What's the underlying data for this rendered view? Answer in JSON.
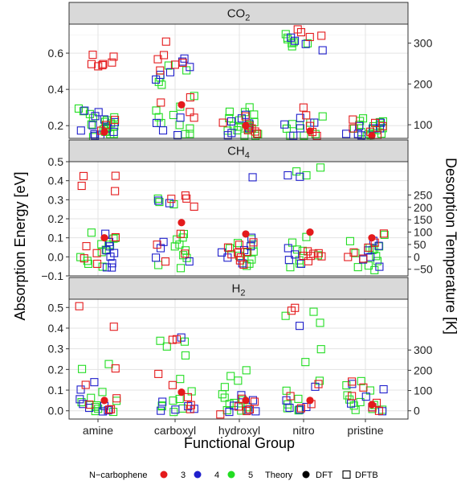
{
  "chart_data": {
    "type": "scatter",
    "xlabel": "Functional Group",
    "ylabel_left": "Absorption Energy [eV]",
    "ylabel_right": "Desorption Temperature [K]",
    "categories": [
      "amine",
      "carboxyl",
      "hydroxyl",
      "nitro",
      "pristine"
    ],
    "legend": {
      "n_title": "N−carbophene",
      "n_items": [
        {
          "label": "3",
          "color": "#e41a1c"
        },
        {
          "label": "4",
          "color": "#1f1fcc"
        },
        {
          "label": "5",
          "color": "#22dd22"
        }
      ],
      "theory_title": "Theory",
      "theory_items": [
        {
          "label": "DFT",
          "shape": "filled-circle"
        },
        {
          "label": "DFTB",
          "shape": "open-square"
        }
      ]
    },
    "panels": [
      {
        "strip": "CO",
        "strip_sub": "2",
        "ylim": [
          0.13,
          0.76
        ],
        "yticks": [
          0.2,
          0.4,
          0.6
        ],
        "yticklabels": [
          "0.2",
          "0.4",
          "0.6"
        ],
        "right_ticks": [
          {
            "y": 0.205,
            "label": "100"
          },
          {
            "y": 0.43,
            "label": "200"
          },
          {
            "y": 0.655,
            "label": "300"
          }
        ],
        "dft": [
          {
            "cat": "amine",
            "n": 3,
            "y": 0.165
          },
          {
            "cat": "carboxyl",
            "n": 3,
            "y": 0.315
          },
          {
            "cat": "hydroxyl",
            "n": 3,
            "y": 0.2
          },
          {
            "cat": "nitro",
            "n": 3,
            "y": 0.17
          },
          {
            "cat": "pristine",
            "n": 3,
            "y": 0.145
          }
        ],
        "dftb": {
          "amine": {
            "3": [
              0.59,
              0.54,
              0.53,
              0.58,
              0.55,
              0.54,
              0.53,
              0.23,
              0.2,
              0.17
            ],
            "4": [
              0.28,
              0.25,
              0.22,
              0.19,
              0.17,
              0.15,
              0.14,
              0.16,
              0.2,
              0.24,
              0.27,
              0.15
            ],
            "5": [
              0.3,
              0.26,
              0.23,
              0.21,
              0.19,
              0.17,
              0.15,
              0.14,
              0.16,
              0.22,
              0.25,
              0.28,
              0.2,
              0.18,
              0.16,
              0.24,
              0.21
            ]
          },
          "carboxyl": {
            "3": [
              0.66,
              0.59,
              0.57,
              0.55,
              0.53,
              0.51,
              0.33,
              0.35,
              0.28,
              0.25
            ],
            "4": [
              0.57,
              0.55,
              0.52,
              0.5,
              0.48,
              0.46,
              0.25,
              0.22,
              0.18,
              0.15
            ],
            "5": [
              0.53,
              0.51,
              0.47,
              0.44,
              0.42,
              0.36,
              0.3,
              0.26,
              0.22,
              0.19,
              0.16,
              0.15,
              0.28,
              0.24,
              0.2
            ]
          },
          "hydroxyl": {
            "3": [
              0.25,
              0.22,
              0.19,
              0.17,
              0.15,
              0.2,
              0.18
            ],
            "4": [
              0.26,
              0.24,
              0.21,
              0.18,
              0.16,
              0.15,
              0.22
            ],
            "5": [
              0.3,
              0.28,
              0.26,
              0.24,
              0.22,
              0.2,
              0.19,
              0.18,
              0.17,
              0.16,
              0.15,
              0.14,
              0.27,
              0.23,
              0.21,
              0.19,
              0.17
            ]
          },
          "nitro": {
            "3": [
              0.72,
              0.7,
              0.69,
              0.73,
              0.3,
              0.26,
              0.2,
              0.17,
              0.15
            ],
            "4": [
              0.68,
              0.67,
              0.65,
              0.61,
              0.24,
              0.2,
              0.18,
              0.15,
              0.22
            ],
            "5": [
              0.7,
              0.68,
              0.67,
              0.66,
              0.65,
              0.64,
              0.66,
              0.25,
              0.22,
              0.2,
              0.18,
              0.16,
              0.15,
              0.14,
              0.21
            ]
          },
          "pristine": {
            "3": [
              0.23,
              0.2,
              0.18,
              0.16,
              0.15,
              0.21
            ],
            "4": [
              0.22,
              0.2,
              0.18,
              0.16,
              0.15,
              0.14,
              0.19
            ],
            "5": [
              0.24,
              0.23,
              0.22,
              0.21,
              0.2,
              0.19,
              0.18,
              0.17,
              0.16,
              0.15,
              0.14,
              0.22,
              0.2,
              0.18,
              0.16,
              0.15
            ]
          }
        }
      },
      {
        "strip": "CH",
        "strip_sub": "4",
        "ylim": [
          -0.1,
          0.5
        ],
        "yticks": [
          -0.1,
          0.0,
          0.1,
          0.2,
          0.3,
          0.4,
          0.5
        ],
        "yticklabels": [
          "−0.1",
          "0.0",
          "0.1",
          "0.2",
          "0.3",
          "0.4",
          "0.5"
        ],
        "right_ticks": [
          {
            "y": -0.065,
            "label": "−50"
          },
          {
            "y": 0.0,
            "label": "0"
          },
          {
            "y": 0.065,
            "label": "50"
          },
          {
            "y": 0.13,
            "label": "100"
          },
          {
            "y": 0.195,
            "label": "150"
          },
          {
            "y": 0.26,
            "label": "200"
          },
          {
            "y": 0.325,
            "label": "250"
          }
        ],
        "dft": [
          {
            "cat": "amine",
            "n": 3,
            "y": 0.1
          },
          {
            "cat": "carboxyl",
            "n": 3,
            "y": 0.18
          },
          {
            "cat": "hydroxyl",
            "n": 3,
            "y": 0.12
          },
          {
            "cat": "nitro",
            "n": 3,
            "y": 0.13
          },
          {
            "cat": "pristine",
            "n": 3,
            "y": 0.1
          }
        ],
        "dftb": {
          "amine": {
            "3": [
              0.43,
              0.42,
              0.37,
              0.35,
              0.1,
              0.05,
              0.02,
              -0.01,
              -0.04
            ],
            "4": [
              0.12,
              0.08,
              0.05,
              0.02,
              0.0,
              -0.03,
              -0.05,
              -0.06,
              0.03
            ],
            "5": [
              0.13,
              0.1,
              0.07,
              0.04,
              0.02,
              0.0,
              -0.02,
              -0.04,
              -0.05,
              0.06,
              0.09
            ]
          },
          "carboxyl": {
            "3": [
              0.32,
              0.31,
              0.3,
              0.26,
              0.12,
              0.06,
              0.02,
              -0.02
            ],
            "4": [
              0.29,
              0.28,
              0.08,
              0.04,
              0.0,
              -0.03
            ],
            "5": [
              0.3,
              0.29,
              0.28,
              0.12,
              0.1,
              0.07,
              0.04,
              0.01,
              -0.01,
              -0.04,
              -0.06,
              0.09,
              0.05
            ]
          },
          "hydroxyl": {
            "3": [
              0.08,
              0.05,
              0.02,
              0.0,
              -0.02,
              0.06,
              0.03,
              0.01,
              -0.04
            ],
            "4": [
              0.42,
              0.1,
              0.06,
              0.02,
              -0.01,
              -0.03,
              0.04
            ],
            "5": [
              0.09,
              0.07,
              0.05,
              0.03,
              0.01,
              -0.01,
              -0.03,
              -0.05,
              0.02,
              0.06
            ]
          },
          "nitro": {
            "3": [
              0.03,
              0.02,
              0.01,
              0.0,
              -0.02,
              0.02,
              0.0
            ],
            "4": [
              0.43,
              0.42,
              0.05,
              0.01,
              -0.02,
              -0.04
            ],
            "5": [
              0.47,
              0.45,
              0.43,
              0.1,
              0.07,
              0.04,
              0.01,
              -0.02,
              -0.04,
              -0.06,
              0.03
            ]
          },
          "pristine": {
            "3": [
              0.12,
              0.08,
              0.05,
              0.02,
              -0.01,
              0.0
            ],
            "4": [
              0.09,
              0.06,
              0.03,
              0.0,
              -0.02,
              -0.05
            ],
            "5": [
              0.11,
              0.08,
              0.06,
              0.04,
              0.02,
              0.0,
              -0.02,
              -0.04,
              -0.06,
              -0.07,
              0.05,
              0.03
            ]
          }
        }
      },
      {
        "strip": "H",
        "strip_sub": "2",
        "ylim": [
          -0.04,
          0.54
        ],
        "yticks": [
          0.0,
          0.1,
          0.2,
          0.3,
          0.4,
          0.5
        ],
        "yticklabels": [
          "0.0",
          "0.1",
          "0.2",
          "0.3",
          "0.4",
          "0.5"
        ],
        "right_ticks": [
          {
            "y": 0.0,
            "label": "0"
          },
          {
            "y": 0.098,
            "label": "100"
          },
          {
            "y": 0.196,
            "label": "200"
          },
          {
            "y": 0.294,
            "label": "300"
          }
        ],
        "dft": [
          {
            "cat": "amine",
            "n": 3,
            "y": 0.05
          },
          {
            "cat": "carboxyl",
            "n": 3,
            "y": 0.09
          },
          {
            "cat": "hydroxyl",
            "n": 3,
            "y": 0.05
          },
          {
            "cat": "nitro",
            "n": 3,
            "y": 0.05
          },
          {
            "cat": "pristine",
            "n": 3,
            "y": 0.03
          }
        ],
        "dftb": {
          "amine": {
            "3": [
              0.51,
              0.41,
              0.2,
              0.12,
              0.06,
              0.03,
              0.01,
              0.0
            ],
            "4": [
              0.14,
              0.1,
              0.06,
              0.03,
              0.02,
              0.01,
              0.0,
              0.0
            ],
            "5": [
              0.23,
              0.2,
              0.09,
              0.06,
              0.04,
              0.02,
              0.01,
              0.0,
              0.0,
              0.03,
              0.05
            ]
          },
          "carboxyl": {
            "3": [
              0.35,
              0.34,
              0.18,
              0.12,
              0.06,
              0.03,
              0.01
            ],
            "4": [
              0.35,
              0.04,
              0.02,
              0.01,
              0.0,
              0.0
            ],
            "5": [
              0.34,
              0.33,
              0.31,
              0.27,
              0.15,
              0.1,
              0.06,
              0.03,
              0.02,
              0.01,
              0.0,
              0.05
            ]
          },
          "hydroxyl": {
            "3": [
              0.06,
              0.04,
              0.02,
              0.01,
              0.0,
              -0.02
            ],
            "4": [
              0.08,
              0.05,
              0.03,
              0.01,
              0.0,
              0.0
            ],
            "5": [
              0.2,
              0.17,
              0.14,
              0.11,
              0.08,
              0.06,
              0.04,
              0.03,
              0.02,
              0.01,
              0.0,
              0.0,
              0.05
            ]
          },
          "nitro": {
            "3": [
              0.5,
              0.49,
              0.13,
              0.07,
              0.03,
              0.01
            ],
            "4": [
              0.41,
              0.12,
              0.05,
              0.02,
              0.01,
              0.0
            ],
            "5": [
              0.48,
              0.46,
              0.42,
              0.3,
              0.24,
              0.15,
              0.1,
              0.06,
              0.03,
              0.01,
              0.0,
              0.0
            ]
          },
          "pristine": {
            "3": [
              0.14,
              0.11,
              0.07,
              0.04,
              0.02,
              0.0
            ],
            "4": [
              0.13,
              0.1,
              0.07,
              0.04,
              0.02,
              0.0
            ],
            "5": [
              0.14,
              0.12,
              0.1,
              0.08,
              0.05,
              0.03,
              0.01,
              0.0,
              0.0,
              0.04,
              0.02
            ]
          }
        }
      }
    ]
  }
}
